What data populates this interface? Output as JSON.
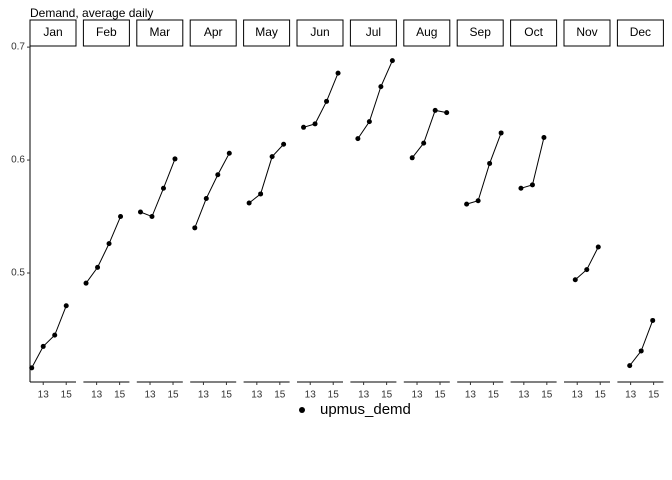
{
  "chart_data": {
    "type": "line",
    "title": "Demand, average daily",
    "color": "#000000",
    "series_name": "upmus_demd",
    "xlim": [
      11.85,
      15.85
    ],
    "xticks": [
      13,
      15
    ],
    "ylim": [
      0.4035,
      0.724
    ],
    "yticks": [
      0.5,
      0.6,
      0.7
    ],
    "panels": [
      {
        "name": "Jan",
        "x": [
          12,
          13,
          14,
          15
        ],
        "values": [
          0.416,
          0.435,
          0.445,
          0.471
        ]
      },
      {
        "name": "Feb",
        "x": [
          12.08,
          13.08,
          14.08,
          15.08
        ],
        "values": [
          0.491,
          0.505,
          0.526,
          0.55
        ]
      },
      {
        "name": "Mar",
        "x": [
          12.17,
          13.17,
          14.17,
          15.17
        ],
        "values": [
          0.554,
          0.55,
          0.575,
          0.601
        ]
      },
      {
        "name": "Apr",
        "x": [
          12.25,
          13.25,
          14.25,
          15.25
        ],
        "values": [
          0.54,
          0.566,
          0.587,
          0.606
        ]
      },
      {
        "name": "May",
        "x": [
          12.33,
          13.33,
          14.33,
          15.33
        ],
        "values": [
          0.562,
          0.57,
          0.603,
          0.614
        ]
      },
      {
        "name": "Jun",
        "x": [
          12.42,
          13.42,
          14.42,
          15.42
        ],
        "values": [
          0.629,
          0.632,
          0.652,
          0.677
        ]
      },
      {
        "name": "Jul",
        "x": [
          12.5,
          13.5,
          14.5,
          15.5
        ],
        "values": [
          0.619,
          0.634,
          0.665,
          0.688
        ]
      },
      {
        "name": "Aug",
        "x": [
          12.58,
          13.58,
          14.58,
          15.58
        ],
        "values": [
          0.602,
          0.615,
          0.644,
          0.642
        ]
      },
      {
        "name": "Sep",
        "x": [
          12.67,
          13.67,
          14.67,
          15.67
        ],
        "values": [
          0.561,
          0.564,
          0.597,
          0.624
        ]
      },
      {
        "name": "Oct",
        "x": [
          12.75,
          13.75,
          14.75
        ],
        "values": [
          0.575,
          0.578,
          0.62
        ]
      },
      {
        "name": "Nov",
        "x": [
          12.83,
          13.83,
          14.83
        ],
        "values": [
          0.494,
          0.503,
          0.523
        ]
      },
      {
        "name": "Dec",
        "x": [
          12.92,
          13.92,
          14.92
        ],
        "values": [
          0.418,
          0.431,
          0.458
        ]
      }
    ]
  }
}
